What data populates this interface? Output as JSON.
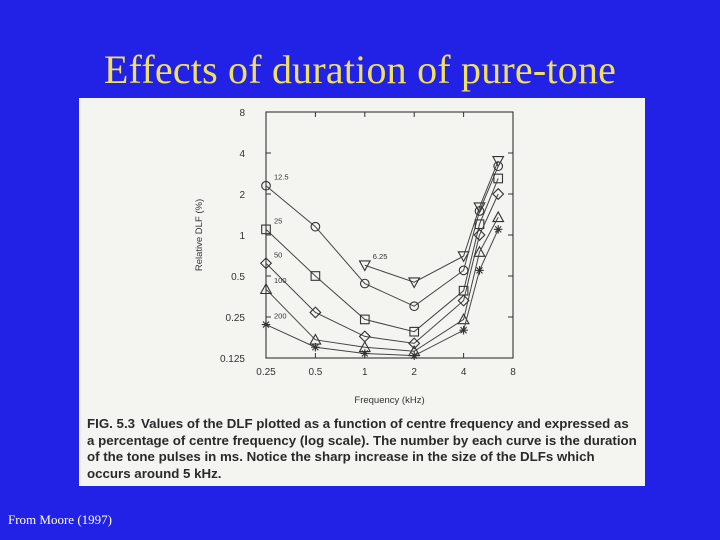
{
  "slide": {
    "title": "Effects of duration of pure-tone",
    "source": "From Moore (1997)",
    "colors": {
      "background": "#2222e6",
      "title": "#f0e060",
      "source": "#ffffff"
    }
  },
  "figure": {
    "label": "FIG. 5.3",
    "caption": "Values of the DLF plotted as a function of centre frequency and expressed as a percentage of centre frequency (log scale). The number by each curve is the duration of the tone pulses in ms. Notice the sharp increase in the size of the DLFs which occurs around 5 kHz."
  },
  "chart_data": {
    "type": "line",
    "title": "",
    "xlabel": "Frequency (kHz)",
    "ylabel": "Relative DLF (%)",
    "x_scale": "log",
    "y_scale": "log",
    "xlim": [
      0.25,
      8
    ],
    "ylim": [
      0.125,
      8
    ],
    "x_ticks": [
      "0.25",
      "0.5",
      "1",
      "2",
      "4",
      "8"
    ],
    "y_ticks": [
      "0.125",
      "0.25",
      "0.5",
      "1",
      "2",
      "4",
      "8"
    ],
    "x": [
      0.25,
      0.5,
      1,
      2,
      4,
      5,
      6.5
    ],
    "grid": false,
    "series": [
      {
        "name": "6.25",
        "marker": "triangle-down",
        "values": [
          null,
          null,
          0.6,
          0.45,
          0.7,
          1.6,
          3.5
        ]
      },
      {
        "name": "12.5",
        "marker": "circle",
        "values": [
          2.3,
          1.15,
          0.44,
          0.3,
          0.55,
          1.5,
          3.2
        ]
      },
      {
        "name": "25",
        "marker": "square",
        "values": [
          1.1,
          0.5,
          0.24,
          0.195,
          0.39,
          1.2,
          2.6
        ]
      },
      {
        "name": "50",
        "marker": "diamond",
        "values": [
          0.62,
          0.27,
          0.18,
          0.16,
          0.33,
          1.0,
          2.0
        ]
      },
      {
        "name": "100",
        "marker": "triangle-up",
        "values": [
          0.4,
          0.17,
          0.15,
          0.14,
          0.24,
          0.75,
          1.35
        ]
      },
      {
        "name": "200",
        "marker": "star",
        "values": [
          0.22,
          0.15,
          0.135,
          0.13,
          0.2,
          0.55,
          1.1
        ]
      }
    ]
  }
}
